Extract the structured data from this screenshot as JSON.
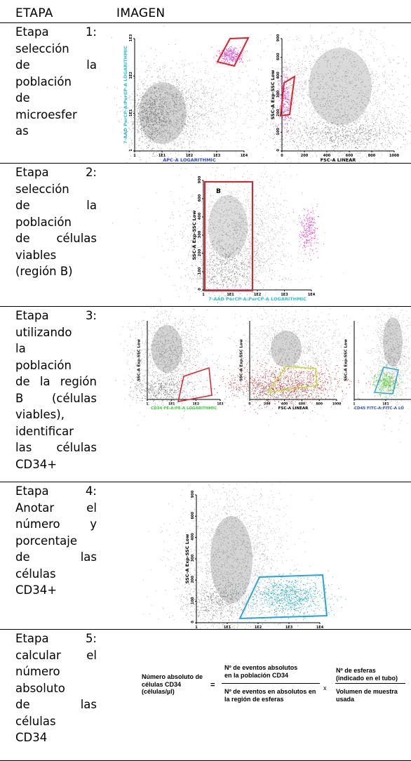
{
  "header": {
    "col1": "ETAPA",
    "col2": "IMAGEN"
  },
  "stages": [
    {
      "lines": [
        "Etapa 1:",
        "selección",
        "de la",
        "población",
        "de",
        "microesfer",
        "as"
      ]
    },
    {
      "lines": [
        "Etapa 2:",
        "selección",
        "de la",
        "población",
        "de células",
        "viables",
        "(región B)"
      ]
    },
    {
      "lines": [
        "Etapa 3:",
        "utilizando",
        "la",
        "población",
        "de la región",
        "B (células",
        "viables),",
        "identificar",
        "las células",
        "CD34+"
      ]
    },
    {
      "lines": [
        "Etapa 4:",
        "Anotar el",
        "número y",
        "porcentaje",
        "de las",
        "células",
        "CD34+"
      ]
    },
    {
      "lines": [
        "Etapa 5:",
        "calcular el",
        "número",
        "absoluto",
        "de las",
        "células",
        "CD34"
      ]
    }
  ],
  "plots": {
    "s1a": {
      "ylabel": "7-AAD PerCP-A:PerCP-A LOGARITHMIC",
      "xlabel": "APC-A LOGARITHMIC",
      "xticks": [
        "1",
        "1E1",
        "1E2",
        "1E3",
        "1E4"
      ],
      "yticks": [
        "1",
        "1E1",
        "1E2",
        "1E3"
      ]
    },
    "s1b": {
      "ylabel": "SSC-A Exp-SSC Low",
      "xlabel": "FSC-A LINEAR",
      "xticks": [
        "0",
        "200",
        "400",
        "600",
        "800",
        "1000"
      ],
      "yticks": [
        "0",
        "100",
        "200",
        "300",
        "400",
        "600",
        "900"
      ]
    },
    "s2": {
      "ylabel": "SSC-A Exp-SSC Low",
      "xlabel": "7-AAD PerCP-A:PerCP-A LOGARITHMIC",
      "gate": "B",
      "xticks": [
        "1",
        "1E1",
        "1E2",
        "1E3",
        "1E4"
      ],
      "yticks": [
        "0",
        "100",
        "200",
        "300",
        "400",
        "600",
        "900"
      ]
    },
    "s3a": {
      "ylabel": "SSC-A Exp-SSC Low",
      "xlabel": "CD34 PE-A:PE-A LOGARITHMIC",
      "xticks": [
        "1",
        "1E1",
        "1E2",
        "1E3"
      ]
    },
    "s3b": {
      "ylabel": "SSC-A Exp-SSC Low",
      "xlabel": "FSC-A LINEAR",
      "xticks": [
        "0",
        "200",
        "400",
        "600",
        "800",
        "1000"
      ]
    },
    "s3c": {
      "ylabel": "SSC-A Exp-SSC Low",
      "xlabel": "CD45 FITC-A:FITC-A LO",
      "xticks": [
        "1",
        "1E1",
        "1E2"
      ]
    },
    "s4": {
      "ylabel": "SSC-A Exp-SSC Low",
      "xlabel": "CD34 PE-A:PE-A LOGARITHMIC",
      "xticks": [
        "1",
        "1E1",
        "1E2",
        "1E3",
        "1E4"
      ],
      "yticks": [
        "0",
        "100",
        "200",
        "300",
        "400",
        "600",
        "900"
      ]
    }
  },
  "formula": {
    "lhs": [
      "Número absoluto de",
      "células CD34",
      "(células/µl)"
    ],
    "eq": "=",
    "num1": [
      "Nº de eventos absolutos",
      "en la población CD34"
    ],
    "den1": [
      "Nº de eventos en absolutos en",
      "la región de esferas"
    ],
    "times": "x",
    "num2": [
      "Nº de esferas",
      "(indicado en el tubo)"
    ],
    "den2": [
      "Volumen de muestra",
      "usada"
    ]
  },
  "colors": {
    "gate_red": "#e0202a",
    "gate_yellow": "#c8d832",
    "gate_blue": "#29a3d9",
    "beads_magenta": "#d81fc8",
    "cd34_cyan": "#17a7bf",
    "viable_red": "#d41c1c",
    "cd45_green": "#49c829",
    "axis_cyan": "#2fc0d3",
    "axis_blue": "#2a4bcf",
    "axis_green": "#2fd32f"
  }
}
